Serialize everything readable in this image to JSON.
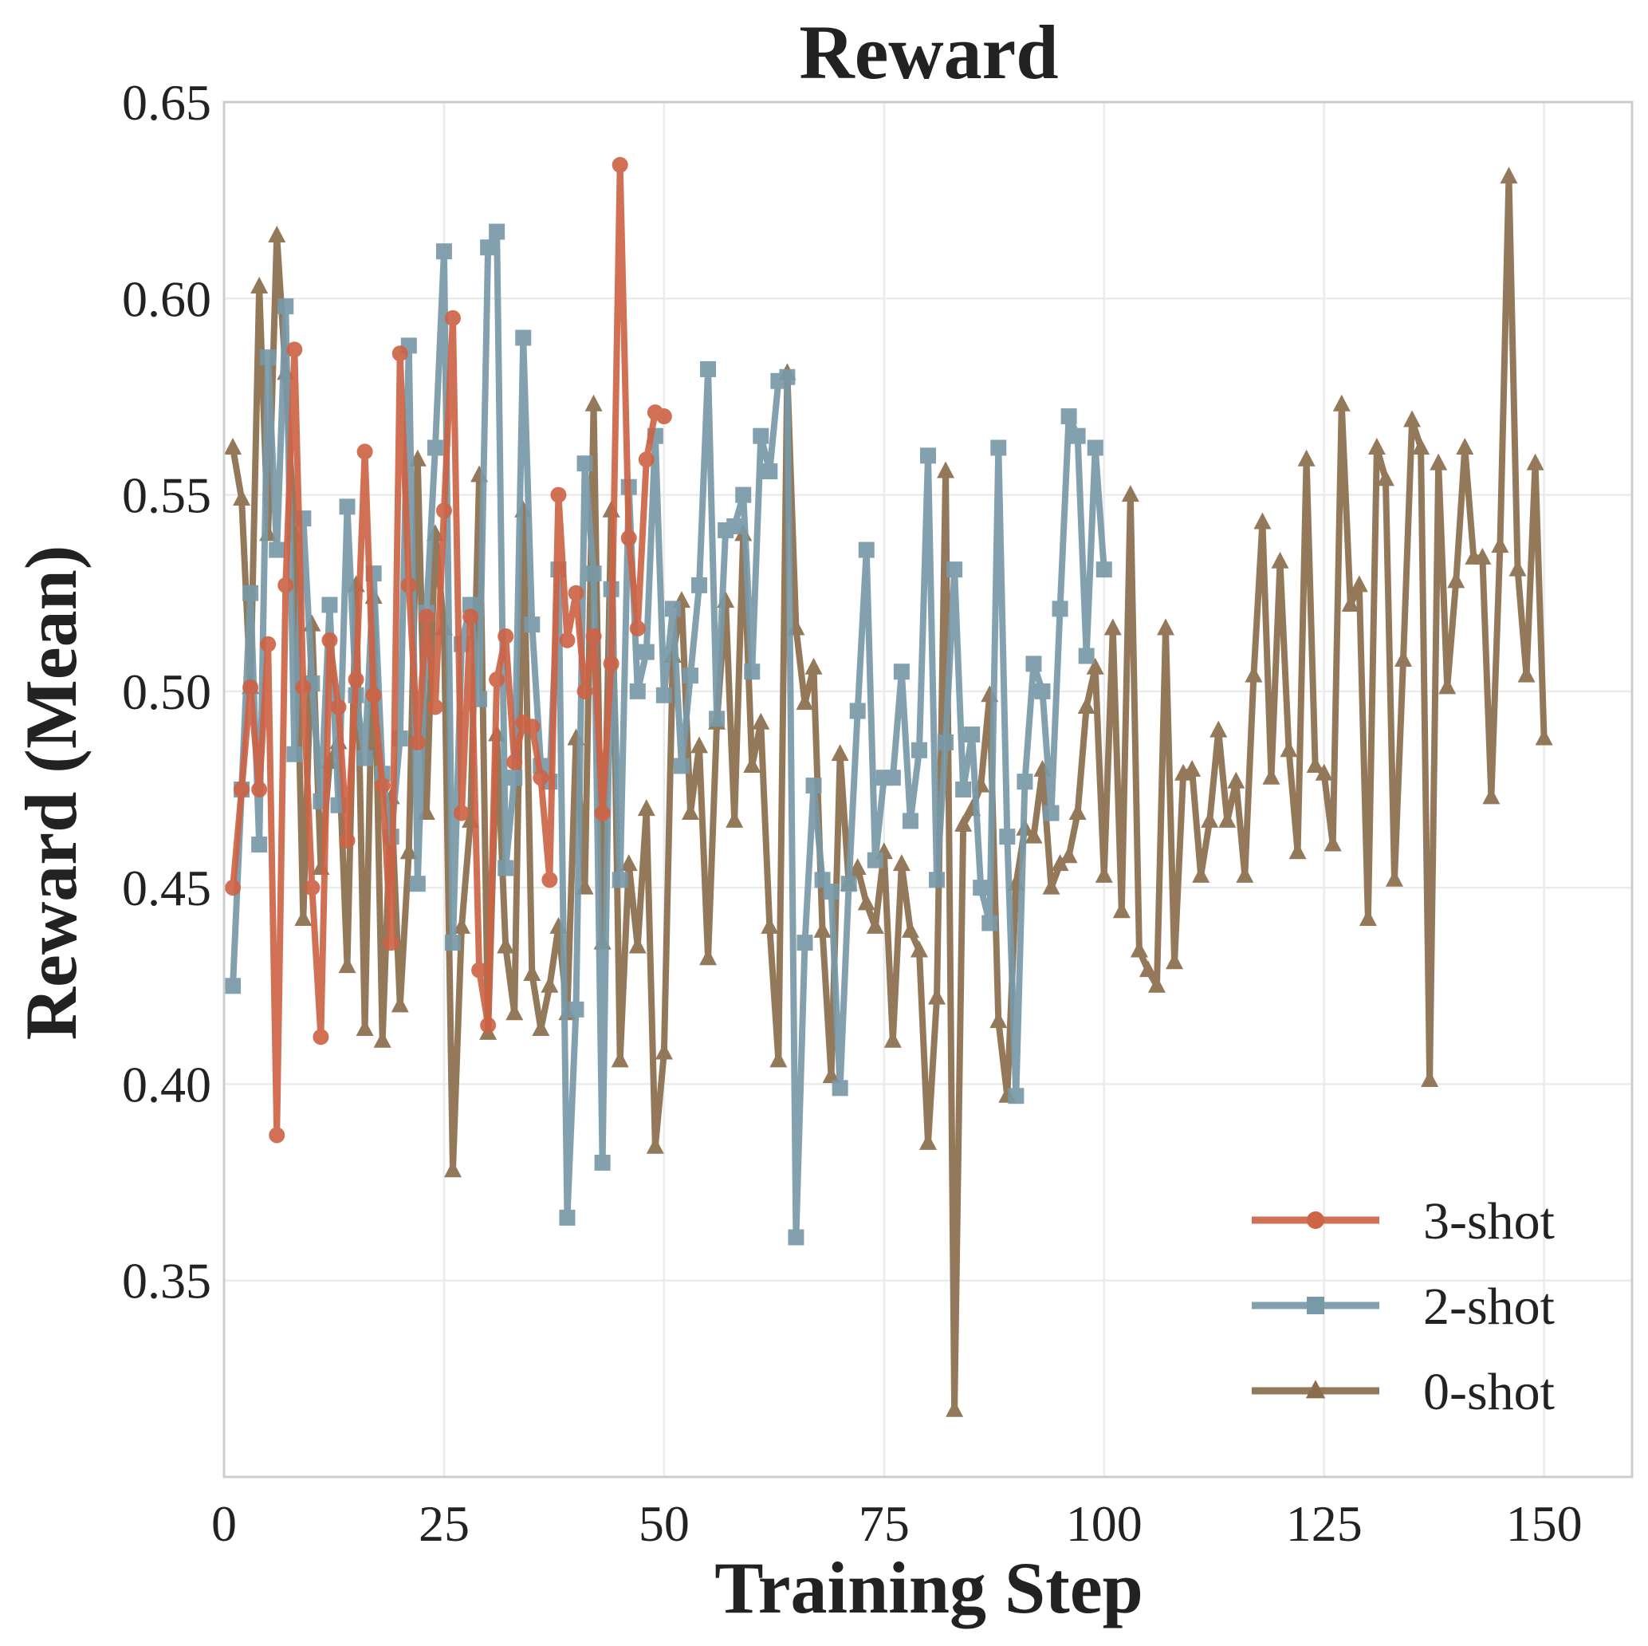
{
  "chart_data": {
    "type": "line",
    "title": "Reward",
    "xlabel": "Training Step",
    "ylabel": "Reward (Mean)",
    "xlim": [
      0,
      160
    ],
    "ylim": [
      0.3,
      0.65
    ],
    "xticks": [
      0,
      25,
      50,
      75,
      100,
      125,
      150
    ],
    "xtick_labels": [
      "0",
      "25",
      "50",
      "75",
      "100",
      "125",
      "150"
    ],
    "yticks": [
      0.35,
      0.4,
      0.45,
      0.5,
      0.55,
      0.6,
      0.65
    ],
    "ytick_labels": [
      "0.35",
      "0.40",
      "0.45",
      "0.50",
      "0.55",
      "0.60",
      "0.65"
    ],
    "grid": true,
    "legend_position": "bottom-right",
    "series": [
      {
        "name": "0-shot",
        "color": "#8b6d4d",
        "marker": "triangle",
        "x": [
          1,
          2,
          3,
          4,
          5,
          6,
          7,
          8,
          9,
          10,
          11,
          12,
          13,
          14,
          15,
          16,
          17,
          18,
          19,
          20,
          21,
          22,
          23,
          24,
          25,
          26,
          27,
          28,
          29,
          30,
          31,
          32,
          33,
          34,
          35,
          36,
          37,
          38,
          39,
          40,
          41,
          42,
          43,
          44,
          45,
          46,
          47,
          48,
          49,
          50,
          51,
          52,
          53,
          54,
          55,
          56,
          57,
          58,
          59,
          60,
          61,
          62,
          63,
          64,
          65,
          66,
          67,
          68,
          69,
          70,
          71,
          72,
          73,
          74,
          75,
          76,
          77,
          78,
          79,
          80,
          81,
          82,
          83,
          84,
          85,
          86,
          87,
          88,
          89,
          90,
          91,
          92,
          93,
          94,
          95,
          96,
          97,
          98,
          99,
          100,
          101,
          102,
          103,
          104,
          105,
          106,
          107,
          108,
          109,
          110,
          111,
          112,
          113,
          114,
          115,
          116,
          117,
          118,
          119,
          120,
          121,
          122,
          123,
          124,
          125,
          126,
          127,
          128,
          129,
          130,
          131,
          132,
          133,
          134,
          135,
          136,
          137,
          138,
          139,
          140,
          141,
          142,
          143,
          144,
          145,
          146,
          147,
          148,
          149,
          150
        ],
        "values": [
          0.562,
          0.549,
          0.501,
          0.603,
          0.54,
          0.616,
          0.581,
          0.54,
          0.442,
          0.517,
          0.455,
          0.482,
          0.487,
          0.43,
          0.527,
          0.414,
          0.524,
          0.411,
          0.473,
          0.42,
          0.459,
          0.559,
          0.469,
          0.54,
          0.516,
          0.378,
          0.44,
          0.467,
          0.555,
          0.413,
          0.489,
          0.435,
          0.418,
          0.546,
          0.428,
          0.414,
          0.425,
          0.44,
          0.418,
          0.488,
          0.45,
          0.573,
          0.436,
          0.546,
          0.406,
          0.456,
          0.435,
          0.47,
          0.384,
          0.408,
          0.509,
          0.523,
          0.469,
          0.486,
          0.432,
          0.492,
          0.523,
          0.467,
          0.54,
          0.481,
          0.492,
          0.44,
          0.406,
          0.581,
          0.516,
          0.497,
          0.506,
          0.439,
          0.402,
          0.484,
          0.451,
          0.455,
          0.446,
          0.44,
          0.459,
          0.411,
          0.456,
          0.439,
          0.434,
          0.385,
          0.422,
          0.556,
          0.317,
          0.466,
          0.47,
          0.476,
          0.499,
          0.416,
          0.397,
          0.451,
          0.465,
          0.463,
          0.48,
          0.45,
          0.456,
          0.458,
          0.469,
          0.496,
          0.506,
          0.453,
          0.516,
          0.444,
          0.55,
          0.434,
          0.429,
          0.425,
          0.516,
          0.431,
          0.479,
          0.48,
          0.453,
          0.467,
          0.49,
          0.467,
          0.477,
          0.453,
          0.504,
          0.543,
          0.478,
          0.533,
          0.485,
          0.459,
          0.559,
          0.481,
          0.479,
          0.461,
          0.573,
          0.522,
          0.527,
          0.442,
          0.562,
          0.554,
          0.452,
          0.508,
          0.569,
          0.562,
          0.401,
          0.558,
          0.501,
          0.528,
          0.562,
          0.534,
          0.534,
          0.473,
          0.537,
          0.631,
          0.531,
          0.504,
          0.558,
          0.488
        ]
      },
      {
        "name": "2-shot",
        "color": "#7899a8",
        "marker": "square",
        "x": [
          1,
          2,
          3,
          4,
          5,
          6,
          7,
          8,
          9,
          10,
          11,
          12,
          13,
          14,
          15,
          16,
          17,
          18,
          19,
          20,
          21,
          22,
          23,
          24,
          25,
          26,
          27,
          28,
          29,
          30,
          31,
          32,
          33,
          34,
          35,
          36,
          37,
          38,
          39,
          40,
          41,
          42,
          43,
          44,
          45,
          46,
          47,
          48,
          49,
          50,
          51,
          52,
          53,
          54,
          55,
          56,
          57,
          58,
          59,
          60,
          61,
          62,
          63,
          64,
          65,
          66,
          67,
          68,
          69,
          70,
          71,
          72,
          73,
          74,
          75,
          76,
          77,
          78,
          79,
          80,
          81,
          82,
          83,
          84,
          85,
          86,
          87,
          88,
          89,
          90,
          91,
          92,
          93,
          94,
          95,
          96,
          97,
          98,
          99,
          100
        ],
        "values": [
          0.425,
          0.475,
          0.525,
          0.461,
          0.585,
          0.536,
          0.598,
          0.484,
          0.544,
          0.502,
          0.472,
          0.522,
          0.471,
          0.547,
          0.499,
          0.483,
          0.53,
          0.479,
          0.463,
          0.488,
          0.588,
          0.451,
          0.52,
          0.562,
          0.612,
          0.436,
          0.512,
          0.522,
          0.498,
          0.613,
          0.617,
          0.455,
          0.478,
          0.59,
          0.517,
          0.481,
          0.477,
          0.531,
          0.366,
          0.419,
          0.558,
          0.53,
          0.38,
          0.526,
          0.452,
          0.552,
          0.5,
          0.51,
          0.565,
          0.499,
          0.521,
          0.481,
          0.504,
          0.527,
          0.582,
          0.493,
          0.541,
          0.542,
          0.55,
          0.505,
          0.565,
          0.556,
          0.579,
          0.58,
          0.361,
          0.436,
          0.476,
          0.452,
          0.449,
          0.399,
          0.451,
          0.495,
          0.536,
          0.457,
          0.478,
          0.478,
          0.505,
          0.467,
          0.485,
          0.56,
          0.452,
          0.487,
          0.531,
          0.475,
          0.489,
          0.45,
          0.441,
          0.562,
          0.463,
          0.397,
          0.477,
          0.507,
          0.5,
          0.469,
          0.521,
          0.57,
          0.565,
          0.509,
          0.562,
          0.531
        ]
      },
      {
        "name": "3-shot",
        "color": "#cd6446",
        "marker": "circle",
        "x": [
          1,
          2,
          3,
          4,
          5,
          6,
          7,
          8,
          9,
          10,
          11,
          12,
          13,
          14,
          15,
          16,
          17,
          18,
          19,
          20,
          21,
          22,
          23,
          24,
          25,
          26,
          27,
          28,
          29,
          30,
          31,
          32,
          33,
          34,
          35,
          36,
          37,
          38,
          39,
          40,
          41,
          42,
          43,
          44,
          45,
          46,
          47,
          48,
          49,
          50
        ],
        "values": [
          0.45,
          0.475,
          0.501,
          0.475,
          0.512,
          0.387,
          0.527,
          0.587,
          0.501,
          0.45,
          0.412,
          0.513,
          0.496,
          0.462,
          0.503,
          0.561,
          0.499,
          0.476,
          0.436,
          0.586,
          0.527,
          0.487,
          0.519,
          0.496,
          0.546,
          0.595,
          0.469,
          0.519,
          0.429,
          0.415,
          0.503,
          0.514,
          0.482,
          0.492,
          0.491,
          0.478,
          0.452,
          0.55,
          0.513,
          0.525,
          0.5,
          0.514,
          0.469,
          0.507,
          0.634,
          0.539,
          0.516,
          0.559,
          0.571,
          0.57
        ]
      }
    ]
  }
}
